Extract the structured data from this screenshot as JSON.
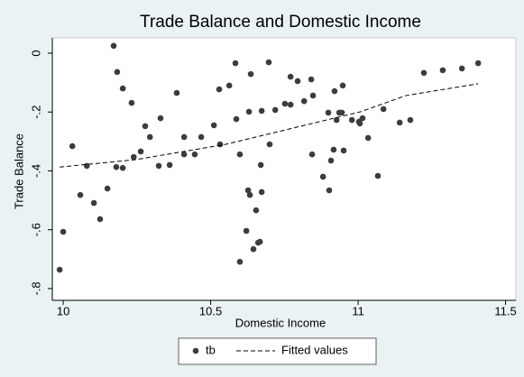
{
  "chart_data": {
    "type": "scatter",
    "title": "Trade Balance and Domestic Income",
    "x_label": "Domestic Income",
    "y_label": "Trade Balance",
    "xlim": [
      9.963,
      11.535
    ],
    "ylim": [
      -0.84,
      0.052
    ],
    "xticks": [
      10,
      10.5,
      11,
      11.5
    ],
    "yticks": [
      0,
      {
        "value": -0.2,
        "label": "-.2"
      },
      {
        "value": -0.4,
        "label": "-.4"
      },
      {
        "value": -0.6,
        "label": "-.6"
      },
      {
        "value": -0.8,
        "label": "-.8"
      }
    ],
    "grid": false,
    "legend_position": "bottom",
    "series": [
      {
        "name": "tb",
        "color": "#3c3c3c",
        "mode": "markers",
        "x": [
          9.988,
          10.0,
          10.031,
          10.058,
          10.08,
          10.104,
          10.125,
          10.15,
          10.171,
          10.183,
          10.18,
          10.202,
          10.202,
          10.232,
          10.239,
          10.263,
          10.278,
          10.294,
          10.324,
          10.33,
          10.361,
          10.385,
          10.41,
          10.41,
          10.446,
          10.468,
          10.511,
          10.529,
          10.532,
          10.563,
          10.584,
          10.587,
          10.599,
          10.599,
          10.621,
          10.627,
          10.63,
          10.633,
          10.636,
          10.645,
          10.654,
          10.661,
          10.667,
          10.67,
          10.673,
          10.673,
          10.697,
          10.7,
          10.719,
          10.752,
          10.771,
          10.771,
          10.795,
          10.817,
          10.841,
          10.844,
          10.847,
          10.881,
          10.899,
          10.902,
          10.908,
          10.917,
          10.92,
          10.927,
          10.936,
          10.945,
          10.948,
          10.951,
          10.979,
          11.003,
          11.006,
          11.015,
          11.034,
          11.067,
          11.086,
          11.141,
          11.177,
          11.223,
          11.287,
          11.352,
          11.407
        ],
        "values": [
          -0.736,
          -0.607,
          -0.316,
          -0.482,
          -0.383,
          -0.509,
          -0.564,
          -0.46,
          0.025,
          -0.064,
          -0.387,
          -0.12,
          -0.39,
          -0.169,
          -0.353,
          -0.334,
          -0.248,
          -0.285,
          -0.383,
          -0.221,
          -0.38,
          -0.135,
          -0.285,
          -0.344,
          -0.344,
          -0.285,
          -0.245,
          -0.123,
          -0.31,
          -0.11,
          -0.034,
          -0.224,
          -0.344,
          -0.709,
          -0.604,
          -0.466,
          -0.199,
          -0.482,
          -0.071,
          -0.666,
          -0.534,
          -0.644,
          -0.641,
          -0.38,
          -0.472,
          -0.196,
          -0.031,
          -0.31,
          -0.193,
          -0.172,
          -0.08,
          -0.175,
          -0.095,
          -0.163,
          -0.089,
          -0.344,
          -0.144,
          -0.42,
          -0.202,
          -0.466,
          -0.365,
          -0.328,
          -0.129,
          -0.227,
          -0.202,
          -0.202,
          -0.11,
          -0.331,
          -0.227,
          -0.233,
          -0.239,
          -0.221,
          -0.288,
          -0.417,
          -0.19,
          -0.236,
          -0.227,
          -0.067,
          -0.058,
          -0.052,
          -0.034
        ]
      },
      {
        "name": "Fitted values",
        "color": "#000000",
        "mode": "line",
        "line_style": "dashed",
        "x": [
          9.988,
          10.245,
          10.55,
          10.856,
          11.009,
          11.162,
          11.407
        ],
        "values": [
          -0.387,
          -0.362,
          -0.31,
          -0.236,
          -0.199,
          -0.144,
          -0.104
        ]
      }
    ]
  }
}
